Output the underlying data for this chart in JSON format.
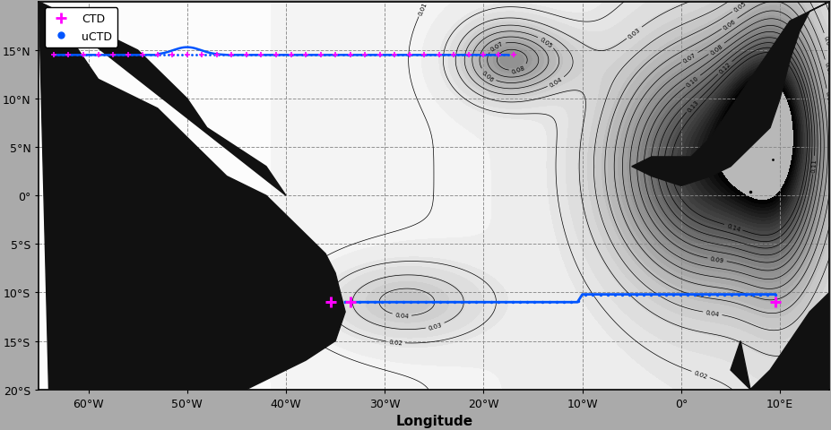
{
  "lon_min": -65,
  "lon_max": 15,
  "lat_min": -20,
  "lat_max": 20,
  "lon_ticks": [
    -60,
    -50,
    -40,
    -30,
    -20,
    -10,
    0,
    10
  ],
  "lat_ticks": [
    -20,
    -15,
    -10,
    -5,
    0,
    5,
    10,
    15
  ],
  "lat_tick_labels": [
    "20°S",
    "15°S",
    "10°S",
    "5°S",
    "0°",
    "5°N",
    "10°N",
    "15°N"
  ],
  "lon_tick_labels": [
    "60°W",
    "50°W",
    "40°W",
    "30°W",
    "20°W",
    "10°W",
    "0°",
    "10°E"
  ],
  "section_14N_lat": 14.5,
  "section_14N_ctd_lons": [
    -63.5,
    -62,
    -60.5,
    -59,
    -57.5,
    -56,
    -54.5,
    -53,
    -51.5,
    -50,
    -48.5,
    -47,
    -45.5,
    -44,
    -42.5,
    -41,
    -39.5,
    -38,
    -36.5,
    -35,
    -33.5,
    -32,
    -30.5,
    -29,
    -27.5,
    -26,
    -24.5,
    -23,
    -21.5,
    -20,
    -18.5,
    -17
  ],
  "section_11S_lat": -11,
  "section_11S_ctd_lons": [
    -35.5,
    -33.5,
    9.5
  ],
  "ctd_color": "#FF00FF",
  "uctd_color": "#0055FF",
  "background_color": "#b0b0b0",
  "land_color": "#111111",
  "grid_linestyle": "--",
  "grid_color": "#888888",
  "xlabel": "Longitude",
  "legend_fontsize": 9,
  "tick_fontsize": 9
}
